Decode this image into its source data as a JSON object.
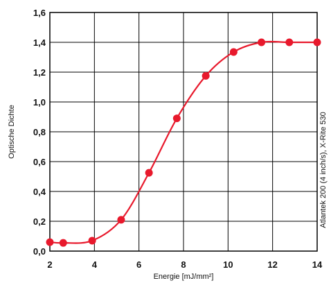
{
  "chart_data": {
    "type": "line",
    "title": "",
    "xlabel": "Energie [mJ/mm²]",
    "ylabel": "Optische Dichte",
    "side_note": "Atlantek 200 (4 inch/s), X-Rite 530",
    "xlim": [
      2,
      14
    ],
    "ylim": [
      0,
      1.6
    ],
    "x_ticks": [
      2,
      4,
      6,
      8,
      10,
      12,
      14
    ],
    "x_tick_labels": [
      "2",
      "4",
      "6",
      "8",
      "10",
      "12",
      "14"
    ],
    "y_ticks": [
      0,
      0.2,
      0.4,
      0.6,
      0.8,
      1.0,
      1.2,
      1.4,
      1.6
    ],
    "y_tick_labels": [
      "0,0",
      "0,2",
      "0,4",
      "0,6",
      "0,8",
      "1,0",
      "1,2",
      "1,4",
      "1,6"
    ],
    "grid": true,
    "color": "#e8192c",
    "series": [
      {
        "x": [
          1.95,
          2.6,
          3.9,
          5.2,
          6.45,
          7.7,
          9.0,
          10.25,
          11.5,
          12.75,
          14.0
        ],
        "y": [
          0.06,
          0.055,
          0.07,
          0.21,
          0.525,
          0.89,
          1.175,
          1.335,
          1.4,
          1.4,
          1.4
        ]
      }
    ]
  }
}
